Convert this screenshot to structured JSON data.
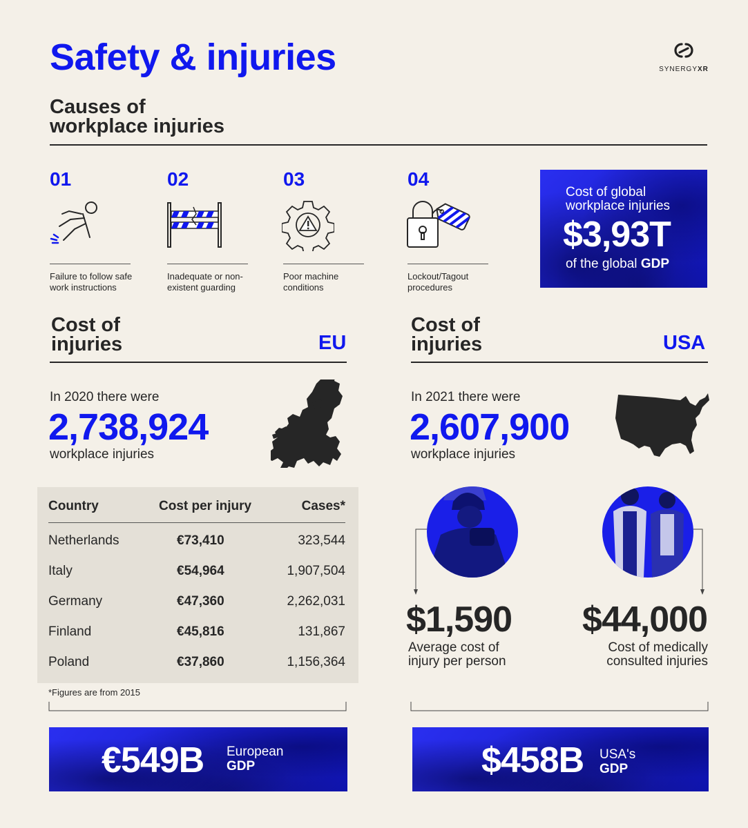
{
  "header": {
    "title": "Safety & injuries",
    "logo_text_light": "SYNERGY",
    "logo_text_bold": "XR"
  },
  "causes": {
    "heading_line1": "Causes of",
    "heading_line2": "workplace injuries",
    "items": [
      {
        "number": "01",
        "text_line1": "Failure to follow safe",
        "text_line2": "work instructions",
        "icon": "falling-person-icon"
      },
      {
        "number": "02",
        "text_line1": "Inadequate or non-",
        "text_line2": "existent guarding",
        "icon": "barrier-icon"
      },
      {
        "number": "03",
        "text_line1": "Poor machine",
        "text_line2": "conditions",
        "icon": "gear-warning-icon"
      },
      {
        "number": "04",
        "text_line1": "Lockout/Tagout",
        "text_line2": "procedures",
        "icon": "padlock-tag-icon"
      }
    ],
    "global_cost": {
      "label_line1": "Cost of global",
      "label_line2": "workplace injuries",
      "value": "$3,93T",
      "sub_prefix": "of the global ",
      "sub_bold": "GDP"
    }
  },
  "eu": {
    "heading_line1": "Cost of",
    "heading_line2": "injuries",
    "region": "EU",
    "intro": "In 2020 there were",
    "count": "2,738,924",
    "outro": "workplace injuries",
    "map_icon": "europe-map-icon",
    "table": {
      "headers": [
        "Country",
        "Cost per injury",
        "Cases*"
      ],
      "rows": [
        {
          "country": "Netherlands",
          "cost": "€73,410",
          "cases": "323,544"
        },
        {
          "country": "Italy",
          "cost": "€54,964",
          "cases": "1,907,504"
        },
        {
          "country": "Germany",
          "cost": "€47,360",
          "cases": "2,262,031"
        },
        {
          "country": "Finland",
          "cost": "€45,816",
          "cases": "131,867"
        },
        {
          "country": "Poland",
          "cost": "€37,860",
          "cases": "1,156,364"
        }
      ],
      "footnote": "*Figures are from 2015"
    },
    "gdp": {
      "value": "€549B",
      "label_line1": "European",
      "label_line2": "GDP"
    }
  },
  "usa": {
    "heading_line1": "Cost of",
    "heading_line2": "injuries",
    "region": "USA",
    "intro": "In 2021 there were",
    "count": "2,607,900",
    "outro": "workplace injuries",
    "map_icon": "usa-map-icon",
    "stat1": {
      "value": "$1,590",
      "label_line1": "Average cost of",
      "label_line2": "injury per person"
    },
    "stat2": {
      "value": "$44,000",
      "label_line1": "Cost of medically",
      "label_line2": "consulted injuries"
    },
    "gdp": {
      "value": "$458B",
      "label_line1": "USA's",
      "label_line2": "GDP"
    }
  },
  "colors": {
    "accent": "#1018ee",
    "background": "#f4f0e8",
    "text": "#262626",
    "table_bg": "#e4e0d7"
  }
}
